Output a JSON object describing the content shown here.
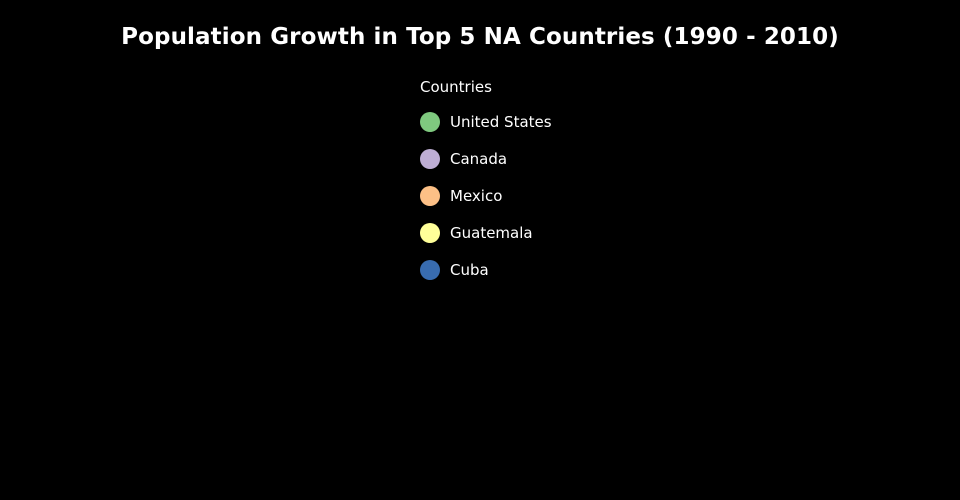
{
  "chart_data": {
    "type": "line",
    "title": "Population Growth in Top 5 NA Countries (1990 - 2010)",
    "legend": {
      "title": "Countries",
      "placement": "top-center"
    },
    "series": [
      {
        "name": "United States",
        "color": "#7fc97f"
      },
      {
        "name": "Canada",
        "color": "#beaed4"
      },
      {
        "name": "Mexico",
        "color": "#fdc086"
      },
      {
        "name": "Guatemala",
        "color": "#ffff99"
      },
      {
        "name": "Cuba",
        "color": "#386cb0"
      }
    ],
    "background": "#000000"
  }
}
